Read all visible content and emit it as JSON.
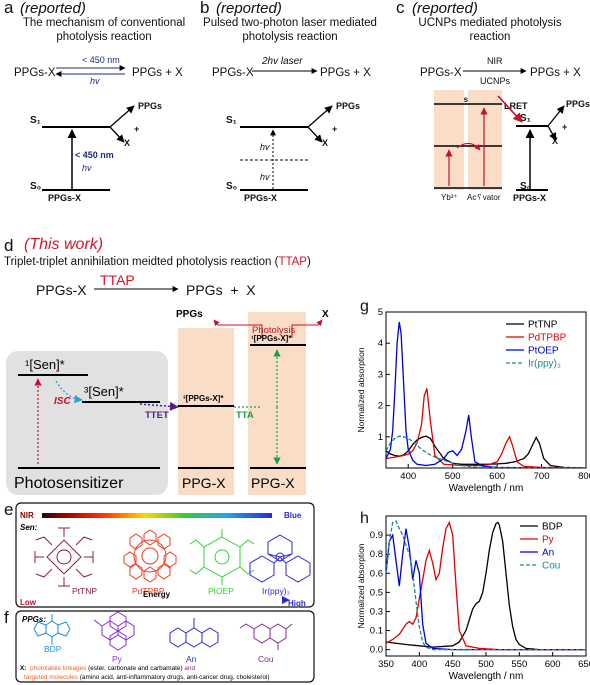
{
  "panel_a": {
    "letter": "a",
    "tag": "(reported)",
    "caption_1": "The mechanism of conventional",
    "caption_2": "photolysis reaction",
    "reactant": "PPGs-X",
    "condition_top": "< 450 nm",
    "condition_bottom": "hv",
    "products": "PPGs + X",
    "s1": "S₁",
    "s0": "S₀",
    "excitation_top": "< 450 nm",
    "excitation_bottom": "hv",
    "branch_top": "PPGs",
    "branch_plus": "+",
    "branch_bottom": "X",
    "ground_label": "PPGs-X"
  },
  "panel_b": {
    "letter": "b",
    "tag": "(reported)",
    "caption_1": "Pulsed two-photon laser mediated",
    "caption_2": "photolysis reaction",
    "reactant": "PPGs-X",
    "condition": "2hv laser",
    "products": "PPGs + X",
    "s1": "S₁",
    "s0": "S₀",
    "hv_top": "hv",
    "hv_bottom": "hv",
    "branch_top": "PPGs",
    "branch_plus": "+",
    "branch_bottom": "X",
    "ground_label": "PPGs-X"
  },
  "panel_c": {
    "letter": "c",
    "tag": "(reported)",
    "caption_1": "UCNPs mediated photolysis",
    "caption_2": "reaction",
    "reactant": "PPGs-X",
    "condition_top": "NIR",
    "condition_bottom": "UCNPs",
    "products": "PPGs + X",
    "ucnps": "UCNPs",
    "lret": "LRET",
    "yb": "Yb³⁺",
    "activator": "Ac␦vator",
    "s1": "S₁",
    "s0": "S₀",
    "branch_top": "PPGs",
    "branch_plus": "+",
    "branch_bottom": "X",
    "ground_label": "PPGs-X"
  },
  "panel_d": {
    "letter": "d",
    "tag": "(This work)",
    "title_main": "Triplet-triplet annihilation meidted photolysis reaction (",
    "title_abbr": "TTAP",
    "title_close": ")",
    "reactant": "PPGs-X",
    "condition": "TTAP",
    "products": "PPGs  +  X",
    "sen_singlet": "¹[Sen]*",
    "sen_triplet": "³[Sen]*",
    "isc": "ISC",
    "ttet": "TTET",
    "tta": "TTA",
    "ppg_triplet": "³[PPGs-X]*",
    "ppg_singlet": "¹[PPGs-X]*",
    "photolysis": "Photolysis",
    "out_left": "PPGs",
    "out_right": "X",
    "photosensitizer": "Photosensitizer",
    "ppgx_1": "PPG-X",
    "ppgx_2": "PPG-X"
  },
  "panel_e": {
    "letter": "e",
    "nir": "NIR",
    "blue": "Blue",
    "sen": "Sen:",
    "molecules": [
      "PtTNP",
      "PdTPBP",
      "PtOEP",
      "Ir(ppy)₃"
    ],
    "low": "Low",
    "energy": "Energy",
    "high": "High",
    "colors": {
      "PtTNP": "#8b1e44",
      "PdTPBP": "#f23a22",
      "PtOEP": "#2fd62f",
      "Ir(ppy)3": "#2a2ad6"
    }
  },
  "panel_f": {
    "letter": "f",
    "ppgs": "PPGs:",
    "molecules": [
      "BDP",
      "Py",
      "An",
      "Cou"
    ],
    "x_prefix": "X:",
    "linkages": "photolabile linkages",
    "linkage_detail": " (ester, carbonate and carbamate) ",
    "and": "and",
    "targeted": "targeted molecules",
    "targeted_detail": " (amino acid, anti-inflammatory drugs, anti-cancer drug, cholesterol)",
    "colors": {
      "BDP": "#1e8fd6",
      "Py": "#8a2be2",
      "An": "#2a2ab8",
      "Cou": "#8a2b8a",
      "accent": "#f26522"
    }
  },
  "panel_g": {
    "letter": "g"
  },
  "panel_h": {
    "letter": "h"
  },
  "chart_data": [
    {
      "panel": "g",
      "type": "line",
      "xlabel": "Wavelength / nm",
      "ylabel": "Normalized absorption",
      "xlim": [
        350,
        800
      ],
      "ylim": [
        0,
        5
      ],
      "xticks": [
        400,
        500,
        600,
        700,
        800
      ],
      "yticks": [
        1,
        2,
        3,
        4,
        5
      ],
      "legend_position": "top-right",
      "series": [
        {
          "name": "PtTNP",
          "color": "#000000",
          "dash": false,
          "x": [
            350,
            360,
            370,
            380,
            390,
            400,
            410,
            420,
            430,
            440,
            450,
            460,
            480,
            500,
            520,
            540,
            560,
            580,
            600,
            620,
            640,
            660,
            670,
            680,
            688,
            695,
            705,
            720,
            750,
            800
          ],
          "y": [
            0.55,
            0.45,
            0.4,
            0.38,
            0.42,
            0.55,
            0.75,
            0.9,
            0.98,
            1.02,
            0.95,
            0.7,
            0.3,
            0.15,
            0.12,
            0.12,
            0.12,
            0.12,
            0.13,
            0.15,
            0.2,
            0.3,
            0.45,
            0.75,
            0.98,
            0.8,
            0.3,
            0.08,
            0.02,
            0.0
          ]
        },
        {
          "name": "PdTPBP",
          "color": "#e00000",
          "dash": false,
          "x": [
            350,
            370,
            390,
            400,
            410,
            420,
            430,
            436,
            442,
            450,
            460,
            480,
            500,
            520,
            540,
            560,
            580,
            600,
            610,
            620,
            628,
            635,
            645,
            660,
            700,
            800
          ],
          "y": [
            0.3,
            0.35,
            0.4,
            0.45,
            0.55,
            0.8,
            1.4,
            2.3,
            2.55,
            1.5,
            0.4,
            0.12,
            0.1,
            0.08,
            0.08,
            0.08,
            0.1,
            0.2,
            0.45,
            0.8,
            1.0,
            0.7,
            0.2,
            0.05,
            0.02,
            0.0
          ]
        },
        {
          "name": "PtOEP",
          "color": "#0000d8",
          "dash": false,
          "x": [
            350,
            360,
            365,
            370,
            375,
            380,
            384,
            390,
            395,
            400,
            410,
            420,
            440,
            460,
            480,
            490,
            500,
            510,
            520,
            530,
            536,
            542,
            550,
            570,
            600,
            800
          ],
          "y": [
            0.3,
            0.6,
            1.2,
            2.5,
            4.0,
            4.68,
            4.3,
            2.6,
            1.2,
            0.6,
            0.25,
            0.12,
            0.08,
            0.12,
            0.3,
            0.5,
            0.55,
            0.4,
            0.6,
            1.2,
            1.7,
            1.0,
            0.2,
            0.05,
            0.02,
            0.0
          ]
        },
        {
          "name": "Ir(ppy)₃",
          "color": "#1a8a8a",
          "dash": true,
          "x": [
            350,
            360,
            370,
            380,
            390,
            400,
            410,
            420,
            430,
            440,
            450,
            460,
            480,
            500,
            520,
            550,
            600,
            800
          ],
          "y": [
            0.55,
            0.8,
            0.95,
            1.02,
            1.0,
            0.95,
            0.85,
            0.72,
            0.6,
            0.5,
            0.42,
            0.35,
            0.25,
            0.15,
            0.08,
            0.03,
            0.01,
            0.0
          ]
        }
      ]
    },
    {
      "panel": "h",
      "type": "line",
      "xlabel": "Wavelength / nm",
      "ylabel": "Normalized absorption",
      "xlim": [
        350,
        650
      ],
      "ylim": [
        -0.05,
        1.05
      ],
      "xticks": [
        350,
        400,
        450,
        500,
        550,
        600,
        650
      ],
      "yticks": [
        0.0,
        0.15,
        0.3,
        0.45,
        0.6,
        0.75,
        0.9
      ],
      "legend_position": "top-right",
      "series": [
        {
          "name": "BDP",
          "color": "#000000",
          "dash": false,
          "x": [
            350,
            380,
            400,
            420,
            450,
            460,
            470,
            480,
            485,
            490,
            495,
            500,
            505,
            510,
            515,
            518,
            520,
            525,
            530,
            535,
            540,
            545,
            550,
            560,
            580,
            650
          ],
          "y": [
            0.06,
            0.04,
            0.03,
            0.02,
            0.03,
            0.06,
            0.15,
            0.32,
            0.36,
            0.38,
            0.45,
            0.6,
            0.78,
            0.92,
            0.99,
            1.0,
            0.98,
            0.85,
            0.6,
            0.35,
            0.18,
            0.08,
            0.04,
            0.01,
            0.0,
            0.0
          ]
        },
        {
          "name": "Py",
          "color": "#e00000",
          "dash": false,
          "x": [
            350,
            360,
            370,
            380,
            385,
            390,
            395,
            400,
            405,
            410,
            415,
            420,
            425,
            430,
            435,
            440,
            445,
            450,
            455,
            460,
            470,
            490,
            520,
            650
          ],
          "y": [
            0.05,
            0.08,
            0.12,
            0.2,
            0.22,
            0.2,
            0.25,
            0.4,
            0.55,
            0.7,
            0.78,
            0.68,
            0.55,
            0.6,
            0.8,
            0.95,
            1.0,
            0.9,
            0.5,
            0.15,
            0.03,
            0.01,
            0.0,
            0.0
          ]
        },
        {
          "name": "An",
          "color": "#0000d8",
          "dash": false,
          "x": [
            350,
            355,
            360,
            365,
            370,
            375,
            380,
            385,
            390,
            395,
            400,
            405,
            410,
            420,
            450,
            650
          ],
          "y": [
            0.6,
            0.85,
            0.9,
            0.7,
            0.5,
            0.75,
            0.95,
            0.8,
            0.55,
            0.7,
            0.6,
            0.2,
            0.05,
            0.01,
            0.0,
            0.0
          ]
        },
        {
          "name": "Cou",
          "color": "#1a8a8a",
          "dash": true,
          "x": [
            350,
            355,
            360,
            365,
            370,
            375,
            380,
            385,
            390,
            395,
            400,
            405,
            410,
            420,
            450,
            650
          ],
          "y": [
            0.6,
            0.85,
            1.0,
            1.01,
            0.95,
            0.9,
            0.82,
            0.75,
            0.6,
            0.38,
            0.18,
            0.06,
            0.02,
            0.0,
            0.0,
            0.0
          ]
        }
      ]
    }
  ]
}
